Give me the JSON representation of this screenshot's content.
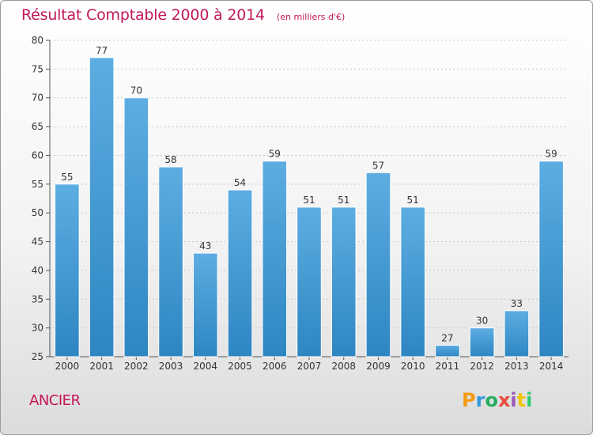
{
  "title": "Résultat Comptable 2000 à 2014",
  "unit_note": "(en milliers d'€)",
  "commune": "ANCIER",
  "logo": {
    "text": "Proxiti",
    "letters": [
      {
        "ch": "P",
        "color": "#f39c12"
      },
      {
        "ch": "r",
        "color": "#3498db"
      },
      {
        "ch": "o",
        "color": "#27ae60"
      },
      {
        "ch": "x",
        "color": "#e74c3c"
      },
      {
        "ch": "i",
        "color": "#9b59b6"
      },
      {
        "ch": "t",
        "color": "#f1c40f"
      },
      {
        "ch": "i",
        "color": "#2ecc71"
      }
    ]
  },
  "colors": {
    "title": "#c2185b",
    "bar_top": "#5dade2",
    "bar_bottom": "#2e86c1",
    "bar_border": "#ffffff",
    "grid": "#c8c8c8",
    "axis": "#555555",
    "text": "#333333"
  },
  "chart_data": {
    "type": "bar",
    "title": "Résultat Comptable 2000 à 2014",
    "xlabel": "",
    "ylabel": "",
    "categories": [
      "2000",
      "2001",
      "2002",
      "2003",
      "2004",
      "2005",
      "2006",
      "2007",
      "2008",
      "2009",
      "2010",
      "2011",
      "2012",
      "2013",
      "2014"
    ],
    "values": [
      55,
      77,
      70,
      58,
      43,
      54,
      59,
      51,
      51,
      57,
      51,
      27,
      30,
      33,
      59
    ],
    "ylim": [
      25,
      80
    ],
    "yticks": [
      25,
      30,
      35,
      40,
      45,
      50,
      55,
      60,
      65,
      70,
      75,
      80
    ],
    "grid": true,
    "data_labels": true,
    "legend": "none"
  }
}
